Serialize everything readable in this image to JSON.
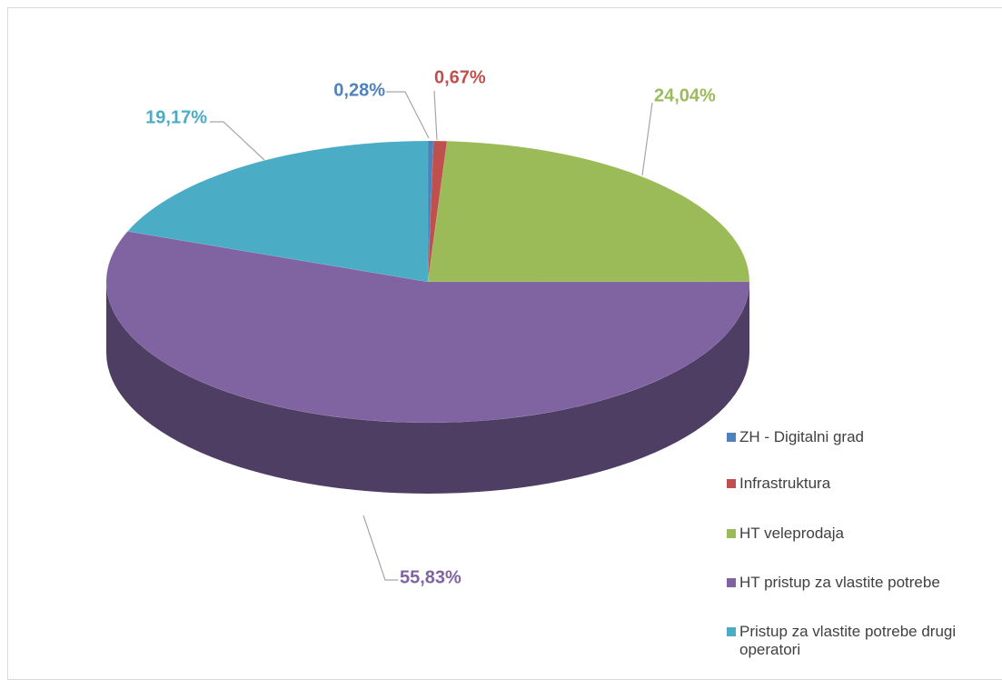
{
  "chart_data": {
    "type": "pie",
    "categories": [
      "ZH - Digitalni grad",
      "Infrastruktura",
      "HT veleprodaja",
      "HT pristup za vlastite potrebe",
      "Pristup za vlastite potrebe drugi operatori"
    ],
    "values": [
      0.28,
      0.67,
      24.04,
      55.83,
      19.17
    ],
    "value_labels": [
      "0,28%",
      "0,67%",
      "24,04%",
      "55,83%",
      "19,17%"
    ],
    "colors": [
      "#4f81bd",
      "#c0504d",
      "#9bbb59",
      "#8064a2",
      "#4bacc6"
    ],
    "legend": "right"
  }
}
